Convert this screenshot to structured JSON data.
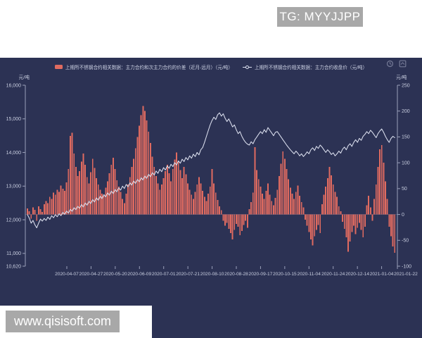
{
  "watermarks": {
    "top_right": "TG: MYYJJPP",
    "bottom_left": "www.qisisoft.com"
  },
  "chart": {
    "legend": [
      {
        "label": "上期所不锈钢合约相关数据：主力合约和次主力合约的价差（近月-远月）（元/吨）",
        "marker": "bar",
        "color": "#e06b60"
      },
      {
        "label": "上期所不锈钢合约相关数据：主力合约收盘价（元/吨）",
        "marker": "line",
        "color": "#dce0ef"
      }
    ],
    "left_axis": {
      "unit": "元/吨",
      "labels": [
        "16,000",
        "15,000",
        "14,000",
        "13,000",
        "12,000",
        "11,000",
        "10,620"
      ]
    },
    "right_axis": {
      "unit": "元/吨",
      "labels": [
        "250",
        "200",
        "150",
        "100",
        "50",
        "0",
        "-50",
        "-100"
      ]
    },
    "x_axis": {
      "labels": [
        "2020-04-07",
        "2020-04-27",
        "2020-05-20",
        "2020-06-09",
        "2020-07-01",
        "2020-07-21",
        "2020-08-10",
        "2020-08-28",
        "2020-09-17",
        "2020-10-15",
        "2020-11-04",
        "2020-11-24",
        "2020-12-14",
        "2021-01-04",
        "2021-01-22"
      ]
    }
  },
  "chart_data": {
    "type": "bar",
    "note": "dual-axis combo: bars = price spread (right axis 元/吨), line = main contract close (left axis 元/吨)",
    "x_tick_labels": [
      "2020-04-07",
      "2020-04-27",
      "2020-05-20",
      "2020-06-09",
      "2020-07-01",
      "2020-07-21",
      "2020-08-10",
      "2020-08-28",
      "2020-09-17",
      "2020-10-15",
      "2020-11-04",
      "2020-11-24",
      "2020-12-14",
      "2021-01-04",
      "2021-01-22"
    ],
    "left_ylim": [
      10620,
      16000
    ],
    "right_ylim": [
      -100,
      250
    ],
    "legend_position": "top-center",
    "grid": false,
    "background": "#2c3254",
    "series": [
      {
        "name": "上期所不锈钢合约相关数据：主力合约和次主力合约的价差（近月-远月）（元/吨）",
        "type": "bar",
        "axis": "right",
        "color": "#e06b60",
        "values": [
          12,
          6,
          -8,
          14,
          9,
          -12,
          16,
          10,
          5,
          20,
          26,
          22,
          34,
          30,
          42,
          38,
          48,
          44,
          56,
          50,
          46,
          62,
          88,
          152,
          158,
          118,
          92,
          74,
          84,
          102,
          118,
          96,
          72,
          60,
          82,
          108,
          90,
          70,
          58,
          48,
          40,
          36,
          52,
          64,
          80,
          96,
          110,
          88,
          66,
          54,
          44,
          30,
          22,
          40,
          58,
          72,
          92,
          108,
          128,
          150,
          172,
          192,
          210,
          200,
          182,
          160,
          138,
          112,
          92,
          74,
          60,
          48,
          58,
          70,
          84,
          96,
          80,
          64,
          88,
          106,
          120,
          102,
          86,
          70,
          92,
          78,
          60,
          48,
          38,
          30,
          44,
          58,
          72,
          60,
          46,
          34,
          26,
          40,
          54,
          88,
          60,
          42,
          28,
          16,
          8,
          -12,
          -22,
          -16,
          -28,
          -36,
          -48,
          -30,
          -18,
          -24,
          -40,
          -32,
          -20,
          -12,
          -26,
          10,
          24,
          42,
          130,
          86,
          68,
          54,
          40,
          30,
          46,
          60,
          38,
          26,
          18,
          32,
          48,
          74,
          98,
          122,
          108,
          88,
          68,
          52,
          40,
          30,
          44,
          56,
          36,
          24,
          14,
          -10,
          -22,
          -34,
          -48,
          -60,
          -42,
          -30,
          -20,
          -36,
          20,
          38,
          54,
          70,
          92,
          76,
          58,
          44,
          34,
          16,
          6,
          -14,
          -28,
          -44,
          -72,
          -52,
          -34,
          -22,
          -38,
          -26,
          -16,
          -30,
          -44,
          -24,
          18,
          36,
          14,
          -12,
          30,
          58,
          92,
          126,
          134,
          100,
          64,
          30,
          -24,
          -42,
          -62,
          -74
        ]
      },
      {
        "name": "上期所不锈钢合约相关数据：主力合约收盘价（元/吨）",
        "type": "line",
        "axis": "left",
        "color": "#dce0ef",
        "values": [
          12150,
          12050,
          11900,
          11980,
          11850,
          11760,
          11900,
          12020,
          11960,
          12040,
          11980,
          12080,
          12010,
          12120,
          12060,
          12150,
          12090,
          12180,
          12120,
          12220,
          12160,
          12260,
          12200,
          12310,
          12250,
          12360,
          12300,
          12400,
          12340,
          12450,
          12380,
          12500,
          12430,
          12550,
          12480,
          12600,
          12530,
          12650,
          12580,
          12700,
          12630,
          12750,
          12680,
          12800,
          12730,
          12850,
          12780,
          12900,
          12830,
          12950,
          12880,
          13000,
          12930,
          13050,
          12980,
          13100,
          13030,
          13150,
          13080,
          13200,
          13130,
          13250,
          13180,
          13300,
          13230,
          13350,
          13280,
          13400,
          13330,
          13450,
          13380,
          13500,
          13430,
          13550,
          13480,
          13600,
          13530,
          13650,
          13580,
          13700,
          13630,
          13750,
          13680,
          13800,
          13730,
          13850,
          13780,
          13900,
          13830,
          13950,
          13880,
          14000,
          13930,
          14080,
          14150,
          14300,
          14480,
          14650,
          14820,
          14950,
          15050,
          14980,
          15120,
          15180,
          15080,
          15150,
          15020,
          14920,
          15000,
          14880,
          14760,
          14820,
          14680,
          14560,
          14620,
          14480,
          14380,
          14300,
          14250,
          14220,
          14320,
          14260,
          14380,
          14460,
          14540,
          14620,
          14560,
          14680,
          14600,
          14740,
          14660,
          14580,
          14500,
          14600,
          14620,
          14540,
          14460,
          14380,
          14300,
          14220,
          14150,
          14080,
          14020,
          13960,
          14040,
          13980,
          13900,
          13960,
          13880,
          13940,
          14020,
          13960,
          14080,
          14140,
          14060,
          14180,
          14120,
          14220,
          14160,
          14080,
          14000,
          14080,
          14020,
          13940,
          13990,
          13900,
          13960,
          14040,
          13980,
          14100,
          14160,
          14080,
          14200,
          14260,
          14180,
          14300,
          14380,
          14300,
          14420,
          14360,
          14480,
          14540,
          14620,
          14560,
          14660,
          14600,
          14520,
          14440,
          14560,
          14640,
          14700,
          14600,
          14480,
          14380,
          14300,
          14420,
          14480,
          14440
        ]
      }
    ]
  }
}
